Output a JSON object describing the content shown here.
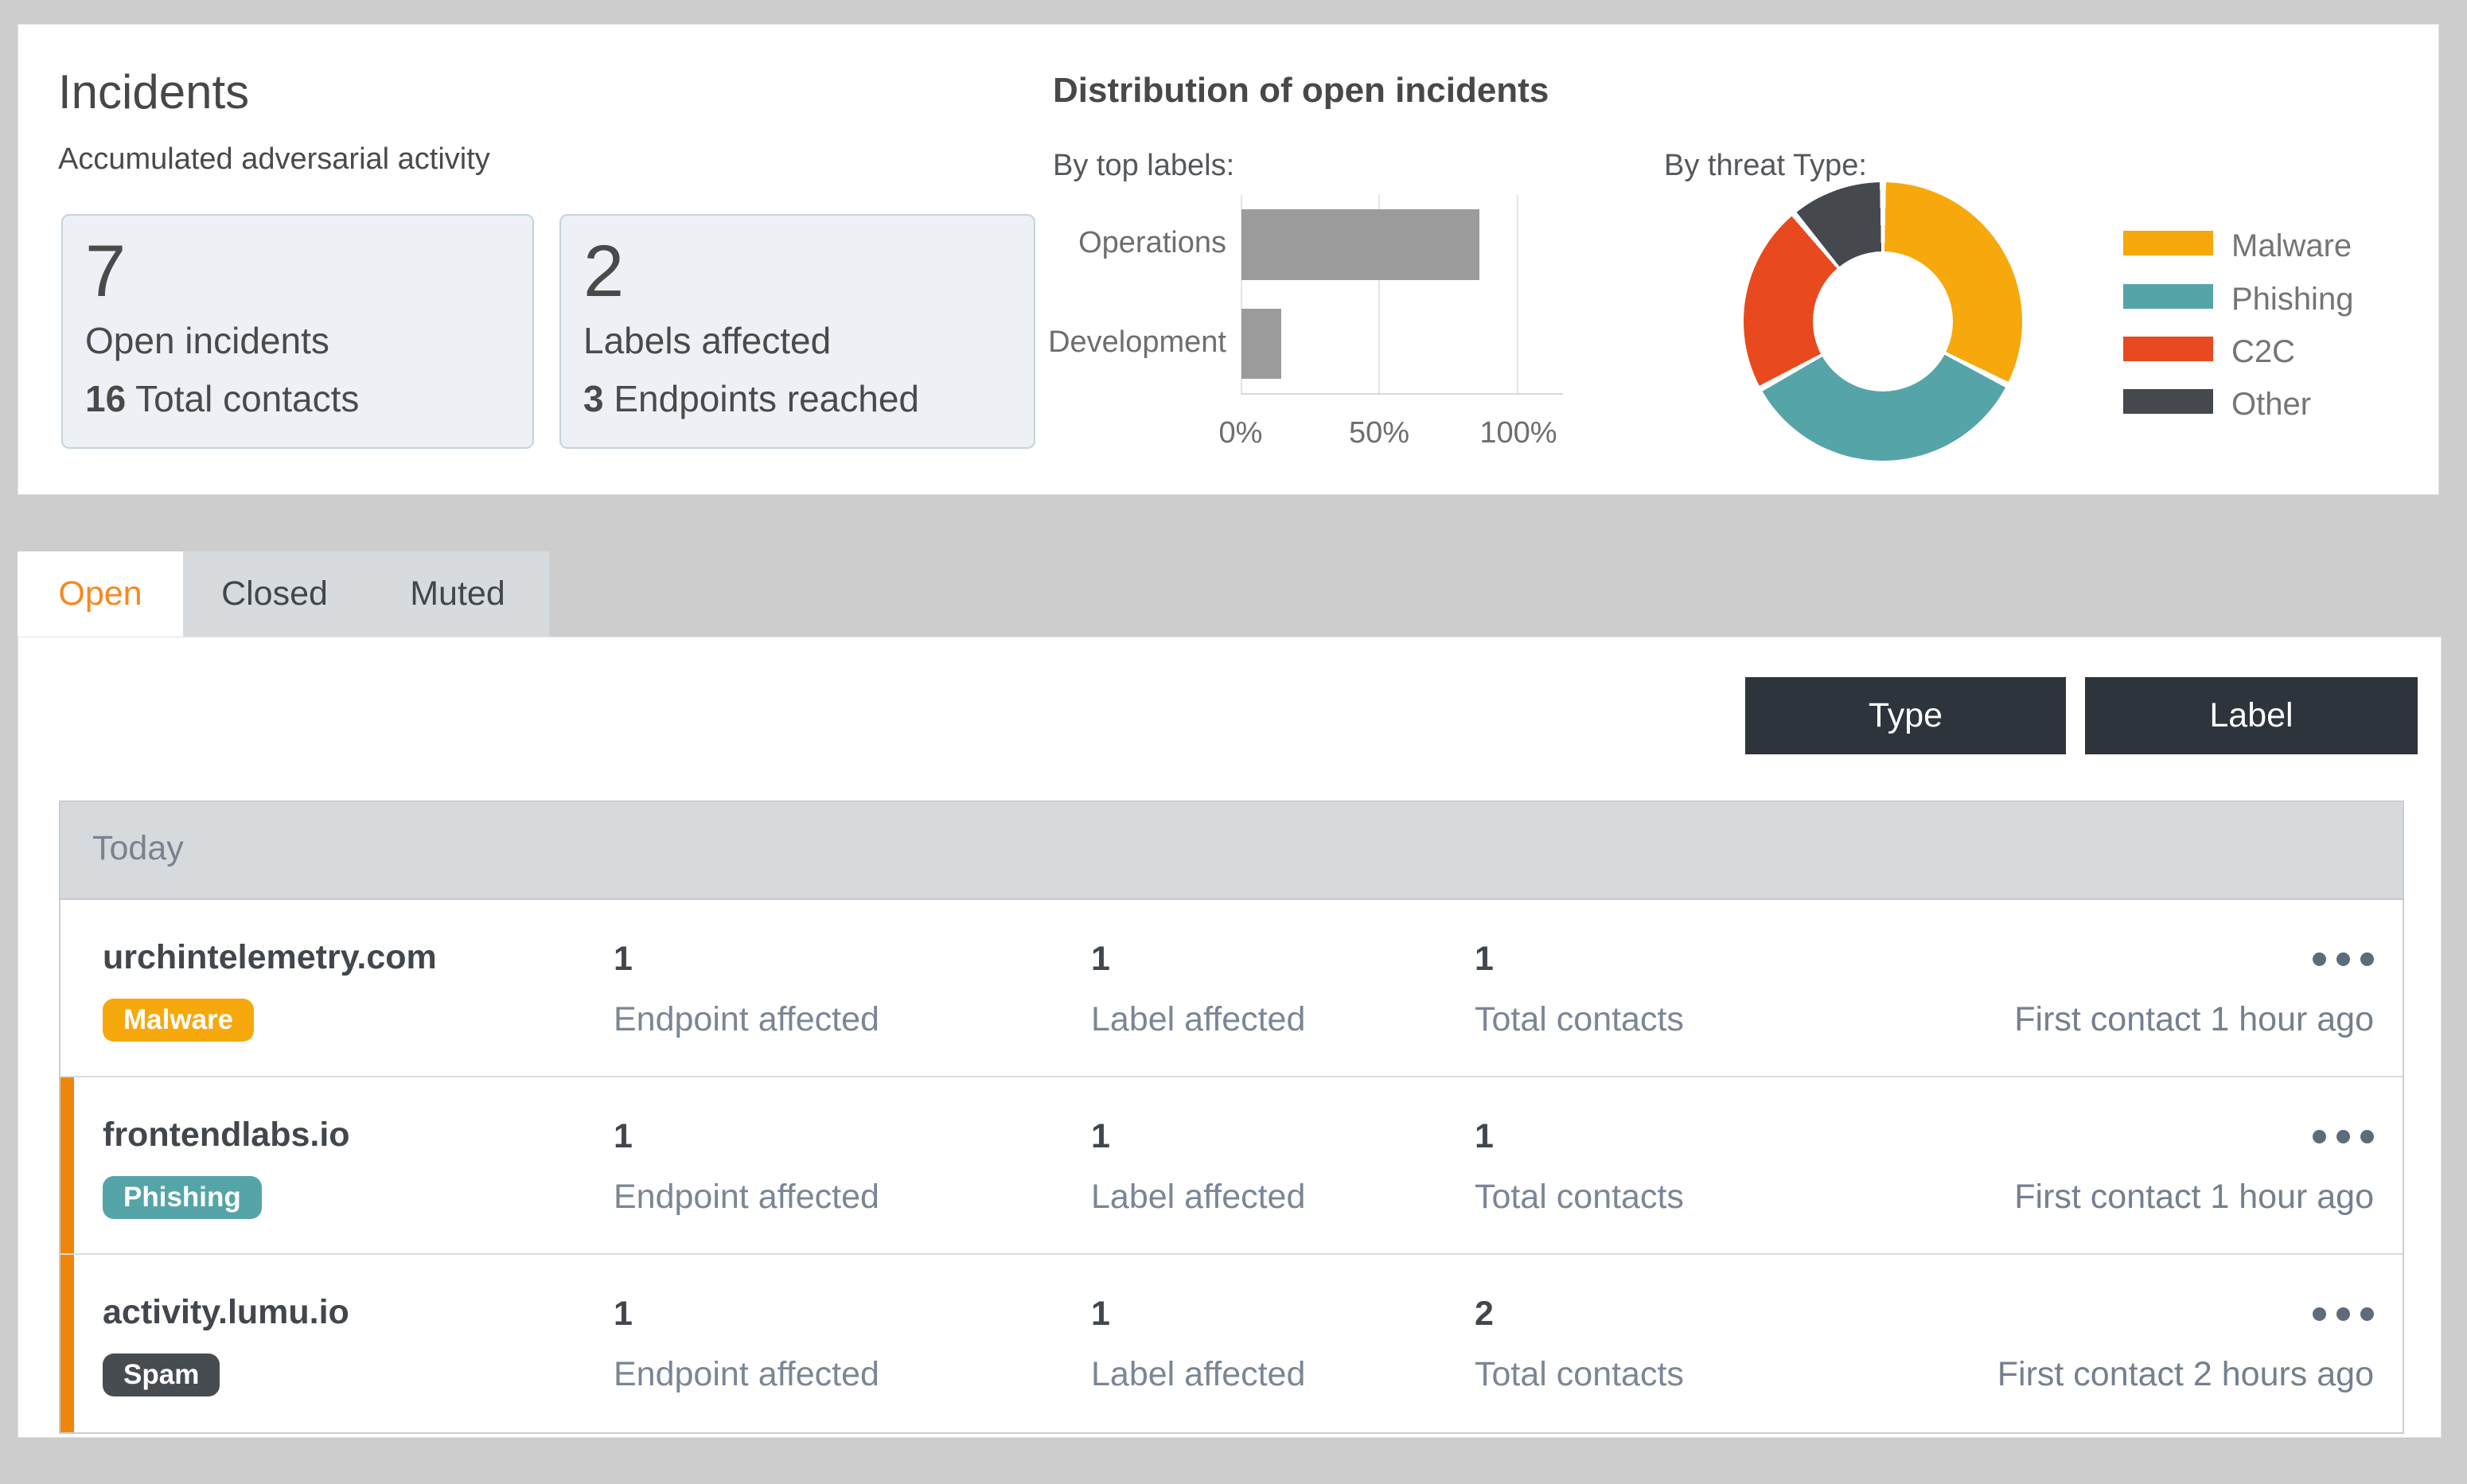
{
  "header": {
    "title": "Incidents",
    "subtitle": "Accumulated adversarial activity"
  },
  "summary_cards": [
    {
      "big": "7",
      "line1": "Open incidents",
      "line2_strong": "16",
      "line2_rest": " Total contacts"
    },
    {
      "big": "2",
      "line1": "Labels affected",
      "line2_strong": "3",
      "line2_rest": " Endpoints reached"
    }
  ],
  "distribution": {
    "title": "Distribution of open incidents",
    "by_labels_caption": "By top labels:",
    "by_threat_caption": "By threat Type:"
  },
  "chart_data": [
    {
      "type": "bar",
      "orientation": "horizontal",
      "title": "Distribution of open incidents",
      "subtitle": "By top labels:",
      "categories": [
        "Operations",
        "Development"
      ],
      "values": [
        85.7,
        14.3
      ],
      "unit": "%",
      "xlim": [
        0,
        100
      ],
      "xticks": [
        "0%",
        "50%",
        "100%"
      ],
      "bar_color": "#9b9b9b",
      "grid": true
    },
    {
      "type": "pie",
      "subtype": "donut",
      "subtitle": "By threat Type:",
      "labels": [
        "Malware",
        "Phishing",
        "C2C",
        "Other"
      ],
      "values": [
        32.5,
        34.5,
        22,
        11
      ],
      "unit": "%",
      "colors": [
        "#f7a80d",
        "#55a5a8",
        "#e8491f",
        "#45494e"
      ],
      "legend_position": "right"
    }
  ],
  "tabs": [
    {
      "label": "Open",
      "active": true
    },
    {
      "label": "Closed",
      "active": false
    },
    {
      "label": "Muted",
      "active": false
    }
  ],
  "filters": {
    "type_label": "Type",
    "label_label": "Label"
  },
  "incidents": {
    "group_label": "Today",
    "rows": [
      {
        "name": "urchintelemetry.com",
        "badge": {
          "label": "Malware",
          "color": "#f7a80d"
        },
        "marked": false,
        "endpoints": {
          "value": "1",
          "label": "Endpoint affected"
        },
        "labels": {
          "value": "1",
          "label": "Label affected"
        },
        "contacts": {
          "value": "1",
          "label": "Total contacts"
        },
        "first_contact": "First contact 1 hour ago"
      },
      {
        "name": "frontendlabs.io",
        "badge": {
          "label": "Phishing",
          "color": "#55a5a8"
        },
        "marked": true,
        "endpoints": {
          "value": "1",
          "label": "Endpoint affected"
        },
        "labels": {
          "value": "1",
          "label": "Label affected"
        },
        "contacts": {
          "value": "1",
          "label": "Total contacts"
        },
        "first_contact": "First contact 1 hour ago"
      },
      {
        "name": "activity.lumu.io",
        "badge": {
          "label": "Spam",
          "color": "#474c51"
        },
        "marked": true,
        "endpoints": {
          "value": "1",
          "label": "Endpoint affected"
        },
        "labels": {
          "value": "1",
          "label": "Label affected"
        },
        "contacts": {
          "value": "2",
          "label": "Total contacts"
        },
        "first_contact": "First contact 2 hours ago"
      }
    ]
  },
  "colors": {
    "accent_orange": "#f6891d",
    "marker_orange": "#f0860c",
    "button_dark": "#2e343b",
    "page_bg": "#cdcdce"
  }
}
